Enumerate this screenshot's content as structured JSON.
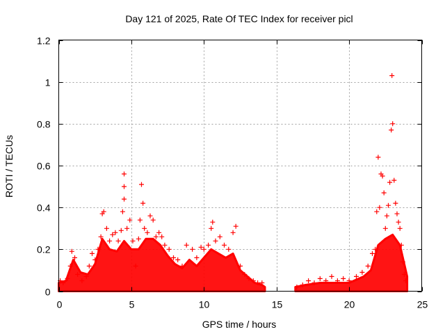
{
  "chart_data": {
    "type": "scatter",
    "title": "Day 121 of 2025, Rate Of TEC Index for receiver picl",
    "xlabel": "GPS time / hours",
    "ylabel": "ROTI / TECUs",
    "xlim": [
      0,
      25
    ],
    "ylim": [
      0,
      1.2
    ],
    "xticks": [
      0,
      5,
      10,
      15,
      20,
      25
    ],
    "xtick_labels": [
      "0",
      "5",
      "10",
      "15",
      "20",
      "25"
    ],
    "yticks": [
      0,
      0.2,
      0.4,
      0.6,
      0.8,
      1.0,
      1.2
    ],
    "ytick_labels": [
      "0",
      "0.2",
      "0.4",
      "0.6",
      "0.8",
      "1",
      "1.2"
    ],
    "grid": true,
    "marker": "+",
    "series": [
      {
        "name": "ROTI",
        "color": "#ff0000",
        "points": [
          [
            0.1,
            0.05
          ],
          [
            0.3,
            0.04
          ],
          [
            0.6,
            0.06
          ],
          [
            0.8,
            0.12
          ],
          [
            0.9,
            0.19
          ],
          [
            1.1,
            0.16
          ],
          [
            1.3,
            0.08
          ],
          [
            1.6,
            0.05
          ],
          [
            1.9,
            0.07
          ],
          [
            2.1,
            0.12
          ],
          [
            2.3,
            0.18
          ],
          [
            2.5,
            0.15
          ],
          [
            2.7,
            0.2
          ],
          [
            2.9,
            0.26
          ],
          [
            3.0,
            0.37
          ],
          [
            3.1,
            0.38
          ],
          [
            3.3,
            0.3
          ],
          [
            3.5,
            0.24
          ],
          [
            3.7,
            0.27
          ],
          [
            3.9,
            0.28
          ],
          [
            4.1,
            0.24
          ],
          [
            4.3,
            0.29
          ],
          [
            4.4,
            0.38
          ],
          [
            4.5,
            0.56
          ],
          [
            4.5,
            0.5
          ],
          [
            4.5,
            0.44
          ],
          [
            4.7,
            0.3
          ],
          [
            4.9,
            0.34
          ],
          [
            5.1,
            0.24
          ],
          [
            5.3,
            0.12
          ],
          [
            5.5,
            0.25
          ],
          [
            5.6,
            0.34
          ],
          [
            5.7,
            0.51
          ],
          [
            5.8,
            0.42
          ],
          [
            5.9,
            0.3
          ],
          [
            6.1,
            0.28
          ],
          [
            6.3,
            0.36
          ],
          [
            6.5,
            0.34
          ],
          [
            6.7,
            0.26
          ],
          [
            6.9,
            0.28
          ],
          [
            7.1,
            0.26
          ],
          [
            7.3,
            0.22
          ],
          [
            7.6,
            0.2
          ],
          [
            7.9,
            0.16
          ],
          [
            8.2,
            0.15
          ],
          [
            8.5,
            0.12
          ],
          [
            8.8,
            0.22
          ],
          [
            9.2,
            0.2
          ],
          [
            9.5,
            0.16
          ],
          [
            9.8,
            0.21
          ],
          [
            10.0,
            0.2
          ],
          [
            10.3,
            0.22
          ],
          [
            10.5,
            0.3
          ],
          [
            10.6,
            0.33
          ],
          [
            10.8,
            0.24
          ],
          [
            11.1,
            0.26
          ],
          [
            11.4,
            0.22
          ],
          [
            11.7,
            0.2
          ],
          [
            12.0,
            0.28
          ],
          [
            12.2,
            0.31
          ],
          [
            12.5,
            0.12
          ],
          [
            12.8,
            0.08
          ],
          [
            13.1,
            0.06
          ],
          [
            13.4,
            0.05
          ],
          [
            13.7,
            0.04
          ],
          [
            14.0,
            0.04
          ],
          [
            16.4,
            0.02
          ],
          [
            16.8,
            0.03
          ],
          [
            17.2,
            0.05
          ],
          [
            17.6,
            0.04
          ],
          [
            18.0,
            0.06
          ],
          [
            18.4,
            0.05
          ],
          [
            18.8,
            0.07
          ],
          [
            19.2,
            0.05
          ],
          [
            19.6,
            0.06
          ],
          [
            20.0,
            0.05
          ],
          [
            20.5,
            0.07
          ],
          [
            20.9,
            0.09
          ],
          [
            21.3,
            0.12
          ],
          [
            21.6,
            0.18
          ],
          [
            21.8,
            0.2
          ],
          [
            21.9,
            0.38
          ],
          [
            22.0,
            0.64
          ],
          [
            22.1,
            0.4
          ],
          [
            22.2,
            0.56
          ],
          [
            22.3,
            0.55
          ],
          [
            22.4,
            0.47
          ],
          [
            22.5,
            0.3
          ],
          [
            22.6,
            0.36
          ],
          [
            22.7,
            0.41
          ],
          [
            22.8,
            0.52
          ],
          [
            22.9,
            0.77
          ],
          [
            22.95,
            1.03
          ],
          [
            23.0,
            0.8
          ],
          [
            23.1,
            0.53
          ],
          [
            23.2,
            0.42
          ],
          [
            23.3,
            0.37
          ],
          [
            23.4,
            0.33
          ],
          [
            23.5,
            0.3
          ],
          [
            23.6,
            0.22
          ],
          [
            23.7,
            0.14
          ],
          [
            23.8,
            0.08
          ],
          [
            23.9,
            0.05
          ]
        ],
        "envelope": [
          [
            0,
            0.04
          ],
          [
            0.5,
            0.05
          ],
          [
            1.0,
            0.15
          ],
          [
            1.5,
            0.09
          ],
          [
            2.0,
            0.08
          ],
          [
            2.5,
            0.13
          ],
          [
            3.0,
            0.25
          ],
          [
            3.5,
            0.2
          ],
          [
            4.0,
            0.19
          ],
          [
            4.5,
            0.24
          ],
          [
            5.0,
            0.2
          ],
          [
            5.5,
            0.2
          ],
          [
            6.0,
            0.25
          ],
          [
            6.5,
            0.25
          ],
          [
            7.0,
            0.22
          ],
          [
            7.5,
            0.17
          ],
          [
            8.0,
            0.13
          ],
          [
            8.5,
            0.11
          ],
          [
            9.0,
            0.15
          ],
          [
            9.5,
            0.12
          ],
          [
            10.0,
            0.16
          ],
          [
            10.5,
            0.2
          ],
          [
            11.0,
            0.18
          ],
          [
            11.5,
            0.16
          ],
          [
            12.0,
            0.18
          ],
          [
            12.5,
            0.1
          ],
          [
            13.0,
            0.07
          ],
          [
            13.5,
            0.04
          ],
          [
            14.0,
            0.03
          ],
          [
            14.2,
            0.02
          ],
          [
            16.3,
            0.02
          ],
          [
            17.0,
            0.03
          ],
          [
            18.0,
            0.04
          ],
          [
            19.0,
            0.04
          ],
          [
            20.0,
            0.04
          ],
          [
            21.0,
            0.07
          ],
          [
            21.5,
            0.1
          ],
          [
            22.0,
            0.22
          ],
          [
            22.5,
            0.25
          ],
          [
            23.0,
            0.27
          ],
          [
            23.5,
            0.22
          ],
          [
            24.0,
            0.07
          ]
        ]
      }
    ]
  }
}
